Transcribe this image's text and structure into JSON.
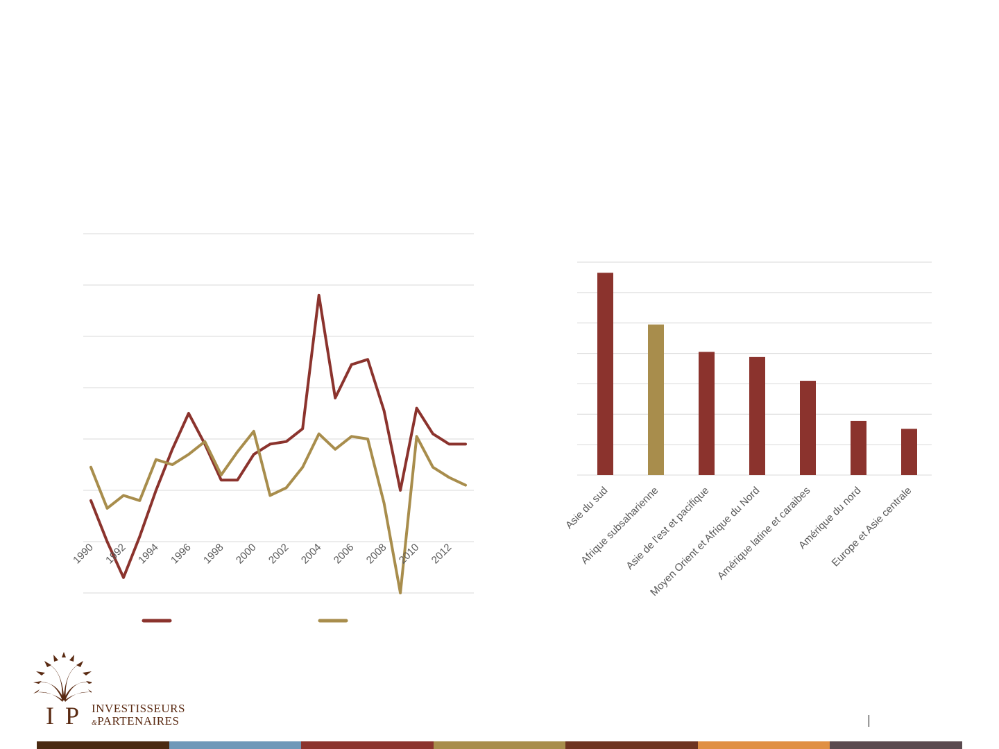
{
  "colors": {
    "primary": "#8b332d",
    "secondary": "#a88d4c",
    "gridline": "#d9d9d9",
    "logo": "#5a2a12"
  },
  "chart_data": [
    {
      "type": "line",
      "grid": true,
      "x_tick_labels": [
        "1990",
        "1992",
        "1994",
        "1996",
        "1998",
        "2000",
        "2002",
        "2004",
        "2006",
        "2008",
        "2010",
        "2012"
      ],
      "x": [
        1990,
        1991,
        1992,
        1993,
        1994,
        1995,
        1996,
        1997,
        1998,
        1999,
        2000,
        2001,
        2002,
        2003,
        2004,
        2005,
        2006,
        2007,
        2008,
        2009,
        2010,
        2011,
        2012,
        2013
      ],
      "ylim": [
        0,
        7
      ],
      "series": [
        {
          "color": "#8b332d",
          "values": [
            1.8,
            1.0,
            0.3,
            1.1,
            2.0,
            2.8,
            3.5,
            2.9,
            2.2,
            2.2,
            2.7,
            2.9,
            2.95,
            3.2,
            5.8,
            3.8,
            4.45,
            4.55,
            3.55,
            2.0,
            3.6,
            3.1,
            2.9,
            2.9
          ]
        },
        {
          "color": "#a88d4c",
          "values": [
            2.45,
            1.65,
            1.9,
            1.8,
            2.6,
            2.5,
            2.7,
            2.95,
            2.3,
            2.75,
            3.15,
            1.9,
            2.05,
            2.45,
            3.1,
            2.8,
            3.05,
            3.0,
            1.75,
            0.0,
            3.05,
            2.45,
            2.25,
            2.1
          ]
        }
      ]
    },
    {
      "type": "bar",
      "grid": true,
      "categories": [
        "Asie du sud",
        "Afrique subsaharienne",
        "Asie de l'est et pacifique",
        "Moyen Orient et Afrique du Nord",
        "Amérique latine et caraibes",
        "Amérique du nord",
        "Europe et Asie centrale"
      ],
      "values": [
        6.65,
        4.95,
        4.05,
        3.88,
        3.1,
        1.78,
        1.52
      ],
      "bar_colors": [
        "#8b332d",
        "#a88d4c",
        "#8b332d",
        "#8b332d",
        "#8b332d",
        "#8b332d",
        "#8b332d"
      ],
      "ylim": [
        0,
        7
      ]
    }
  ],
  "logo": {
    "line1": "INVESTISSEURS",
    "amp": "&",
    "line2": "PARTENAIRES"
  },
  "footer_colors": [
    "#4a2a12",
    "#6f98b8",
    "#8b332d",
    "#a88d4c",
    "#6e3320",
    "#e08f43",
    "#5a4a4f"
  ]
}
